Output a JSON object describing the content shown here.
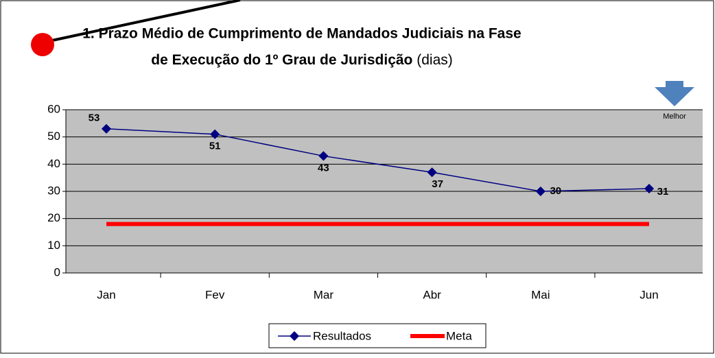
{
  "chart_data": {
    "type": "line",
    "title": [
      "1. Prazo Médio de Cumprimento de Mandados Judiciais na Fase",
      "de Execução do 1º Grau de Jurisdição"
    ],
    "title_suffix": "(dias)",
    "annotation": "Melhor",
    "categories": [
      "Jan",
      "Fev",
      "Mar",
      "Abr",
      "Mai",
      "Jun"
    ],
    "series": [
      {
        "name": "Resultados",
        "color": "#000080",
        "values": [
          53,
          51,
          43,
          37,
          30,
          31
        ]
      },
      {
        "name": "Meta",
        "color": "#ff0000",
        "values": [
          18,
          18,
          18,
          18,
          18,
          18
        ]
      }
    ],
    "ylim": [
      0,
      60
    ],
    "yticks": [
      0,
      10,
      20,
      30,
      40,
      50,
      60
    ],
    "grid": true,
    "legend": "bottom"
  }
}
